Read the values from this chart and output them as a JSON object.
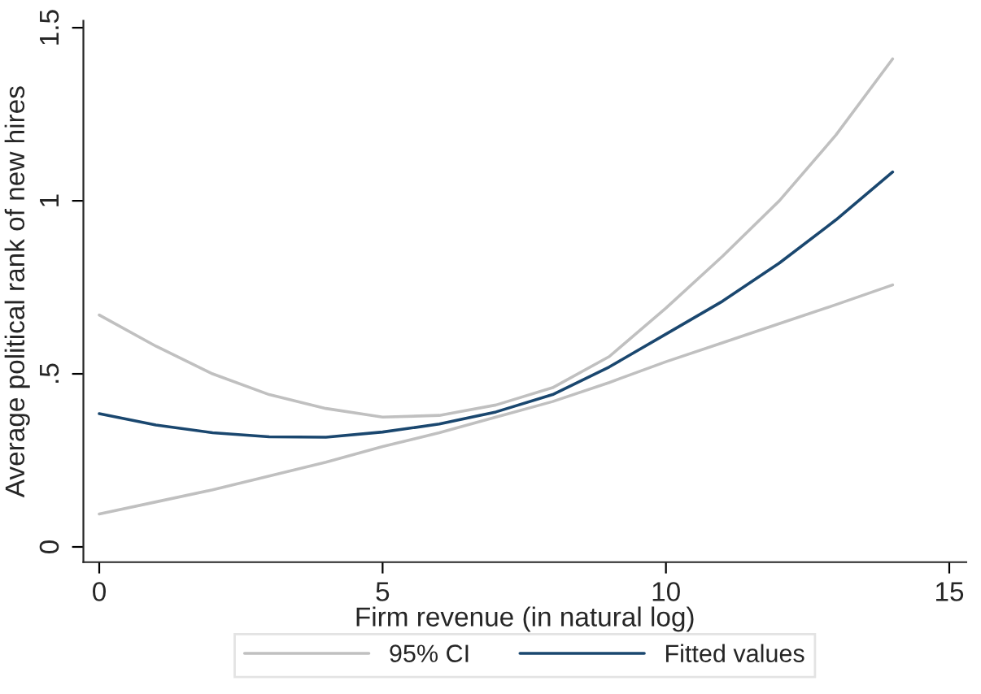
{
  "chart_data": {
    "type": "line",
    "xlabel": "Firm revenue (in natural log)",
    "ylabel": "Average political rank of new hires",
    "x": [
      0,
      1,
      2,
      3,
      4,
      5,
      6,
      7,
      8,
      9,
      10,
      11,
      12,
      13,
      14
    ],
    "series": [
      {
        "name": "95% CI",
        "color": "#c0c0c0",
        "values": [
          0.67,
          0.58,
          0.5,
          0.44,
          0.4,
          0.375,
          0.38,
          0.41,
          0.46,
          0.55,
          0.69,
          0.84,
          1.0,
          1.19,
          1.41
        ]
      },
      {
        "color": "#c0c0c0",
        "values": [
          0.095,
          0.13,
          0.165,
          0.205,
          0.245,
          0.29,
          0.33,
          0.375,
          0.42,
          0.475,
          0.535,
          0.59,
          0.645,
          0.7,
          0.757
        ]
      },
      {
        "name": "Fitted values",
        "color": "#1a476f",
        "values": [
          0.385,
          0.352,
          0.33,
          0.318,
          0.317,
          0.332,
          0.355,
          0.39,
          0.44,
          0.52,
          0.615,
          0.71,
          0.82,
          0.945,
          1.083
        ]
      }
    ],
    "xlim": [
      -0.28,
      15.3
    ],
    "ylim": [
      -0.044,
      1.52
    ],
    "xticks": [
      0,
      5,
      10,
      15
    ],
    "yticks": [
      0,
      {
        "value": 0.5,
        "label": ".5"
      },
      1,
      1.5
    ],
    "grid": false,
    "legend": "bottom",
    "marker": "none",
    "line_style": "solid"
  }
}
